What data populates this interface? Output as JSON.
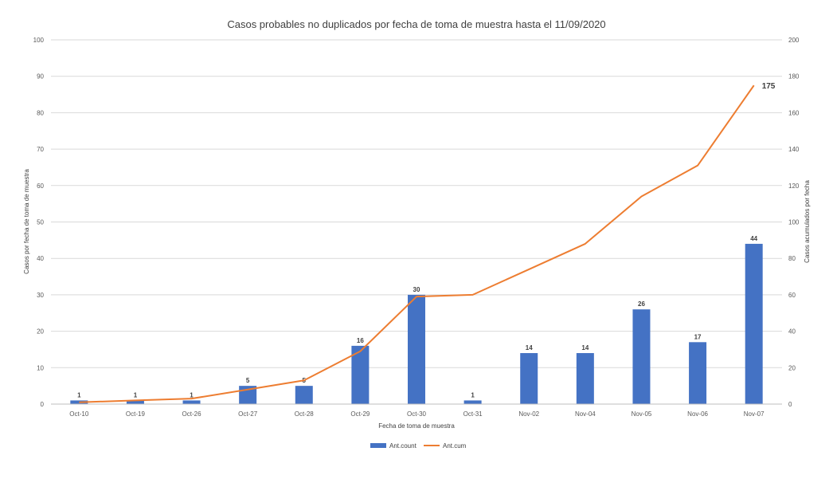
{
  "chart_data": {
    "type": "bar",
    "title": "Casos probables no duplicados por fecha de toma de muestra hasta el 11/09/2020",
    "xlabel": "Fecha de toma de muestra",
    "ylabel": "Casos por fecha de toma de muestra",
    "y2label": "Casos acumulados por fecha",
    "categories": [
      "Oct-10",
      "Oct-19",
      "Oct-26",
      "Oct-27",
      "Oct-28",
      "Oct-29",
      "Oct-30",
      "Oct-31",
      "Nov-02",
      "Nov-04",
      "Nov-05",
      "Nov-06",
      "Nov-07"
    ],
    "ylim": [
      0,
      100
    ],
    "y2lim": [
      0,
      200
    ],
    "yticks": [
      0,
      10,
      20,
      30,
      40,
      50,
      60,
      70,
      80,
      90,
      100
    ],
    "y2ticks": [
      0,
      20,
      40,
      60,
      80,
      100,
      120,
      140,
      160,
      180,
      200
    ],
    "grid": true,
    "legend_position": "bottom",
    "series": [
      {
        "name": "Ant.count",
        "type": "bar",
        "axis": "left",
        "color": "#4472c4",
        "values": [
          1,
          1,
          1,
          5,
          5,
          16,
          30,
          1,
          14,
          14,
          26,
          17,
          44
        ]
      },
      {
        "name": "Ant.cum",
        "type": "line",
        "axis": "right",
        "color": "#ed7d31",
        "values": [
          1,
          2,
          3,
          8,
          13,
          29,
          59,
          60,
          74,
          88,
          114,
          131,
          175
        ]
      }
    ],
    "bar_data_labels": [
      "1",
      "1",
      "1",
      "5",
      "5",
      "16",
      "30",
      "1",
      "14",
      "14",
      "26",
      "17",
      "44"
    ],
    "line_end_label": "175"
  }
}
